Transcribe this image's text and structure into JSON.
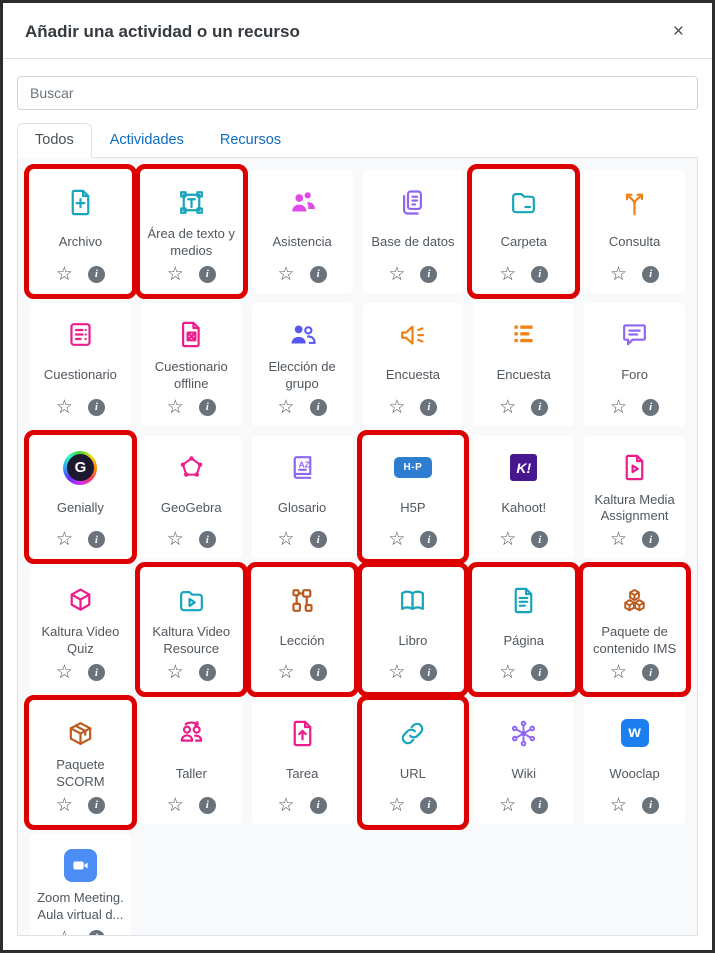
{
  "modal": {
    "title": "Añadir una actividad o un recurso",
    "close_label": "×"
  },
  "search": {
    "placeholder": "Buscar"
  },
  "tabs": [
    {
      "label": "Todos",
      "active": true
    },
    {
      "label": "Actividades",
      "active": false
    },
    {
      "label": "Recursos",
      "active": false
    }
  ],
  "tile_footer": {
    "star_glyph": "☆",
    "info_glyph": "i"
  },
  "colors": {
    "highlight_red": "#dd0000",
    "link_blue": "#0f6cbf",
    "teal": "#17a5bc",
    "pink": "#ec1c8d",
    "orchid": "#df4ae8",
    "purple": "#9066f0",
    "indigo": "#5858f0",
    "orange": "#f08214",
    "rust": "#bb5b20",
    "icon_gray": "#6a737b"
  },
  "modules": [
    {
      "name": "Archivo",
      "icon": "file-plus-icon",
      "color": "#17a5bc",
      "highlighted": true
    },
    {
      "name": "Área de texto y medios",
      "icon": "text-media-icon",
      "color": "#17a5bc",
      "highlighted": true
    },
    {
      "name": "Asistencia",
      "icon": "attendance-people-icon",
      "color": "#df4ae8",
      "highlighted": false
    },
    {
      "name": "Base de datos",
      "icon": "database-docs-icon",
      "color": "#9066f0",
      "highlighted": false
    },
    {
      "name": "Carpeta",
      "icon": "folder-icon",
      "color": "#17a5bc",
      "highlighted": true
    },
    {
      "name": "Consulta",
      "icon": "branch-arrows-icon",
      "color": "#f08214",
      "highlighted": false
    },
    {
      "name": "Cuestionario",
      "icon": "checklist-icon",
      "color": "#ec1c8d",
      "highlighted": false
    },
    {
      "name": "Cuestionario offline",
      "icon": "doc-x-icon",
      "color": "#ec1c8d",
      "highlighted": false
    },
    {
      "name": "Elección de grupo",
      "icon": "two-people-icon",
      "color": "#5858f0",
      "highlighted": false
    },
    {
      "name": "Encuesta",
      "icon": "megaphone-icon",
      "color": "#f08214",
      "highlighted": false
    },
    {
      "name": "Encuesta",
      "icon": "bullet-list-icon",
      "color": "#f08214",
      "highlighted": false
    },
    {
      "name": "Foro",
      "icon": "speech-bubble-icon",
      "color": "#9066f0",
      "highlighted": false
    },
    {
      "name": "Genially",
      "icon": "genially-logo-icon",
      "color": "#1b1830",
      "highlighted": true,
      "badge": {
        "type": "genially",
        "label": "G"
      }
    },
    {
      "name": "GeoGebra",
      "icon": "polygon-dots-icon",
      "color": "#ec1c8d",
      "highlighted": false
    },
    {
      "name": "Glosario",
      "icon": "book-az-icon",
      "color": "#9066f0",
      "highlighted": false
    },
    {
      "name": "H5P",
      "icon": "h5p-logo-icon",
      "color": "#2e7dd1",
      "highlighted": true,
      "badge": {
        "type": "h5p",
        "label": "H-P"
      }
    },
    {
      "name": "Kahoot!",
      "icon": "kahoot-logo-icon",
      "color": "#46178f",
      "highlighted": false,
      "badge": {
        "type": "kahoot",
        "label": "K!"
      }
    },
    {
      "name": "Kaltura Media Assignment",
      "icon": "doc-play-icon",
      "color": "#ec1c8d",
      "highlighted": false
    },
    {
      "name": "Kaltura Video Quiz",
      "icon": "cube-icon",
      "color": "#ec1c8d",
      "highlighted": false
    },
    {
      "name": "Kaltura Video Resource",
      "icon": "folder-play-icon",
      "color": "#17a5bc",
      "highlighted": true
    },
    {
      "name": "Lección",
      "icon": "flowchart-icon",
      "color": "#bb5b20",
      "highlighted": true
    },
    {
      "name": "Libro",
      "icon": "open-book-icon",
      "color": "#17a5bc",
      "highlighted": true
    },
    {
      "name": "Página",
      "icon": "page-lines-icon",
      "color": "#17a5bc",
      "highlighted": true
    },
    {
      "name": "Paquete de contenido IMS",
      "icon": "cubes-icon",
      "color": "#bb5b20",
      "highlighted": true
    },
    {
      "name": "Paquete SCORM",
      "icon": "package-box-icon",
      "color": "#bb5b20",
      "highlighted": true
    },
    {
      "name": "Taller",
      "icon": "people-arrows-icon",
      "color": "#ec1c8d",
      "highlighted": false
    },
    {
      "name": "Tarea",
      "icon": "doc-upload-icon",
      "color": "#ec1c8d",
      "highlighted": false
    },
    {
      "name": "URL",
      "icon": "link-chain-icon",
      "color": "#17a5bc",
      "highlighted": true
    },
    {
      "name": "Wiki",
      "icon": "network-hub-icon",
      "color": "#9066f0",
      "highlighted": false
    },
    {
      "name": "Wooclap",
      "icon": "wooclap-logo-icon",
      "color": "#1d7ef0",
      "highlighted": false,
      "badge": {
        "type": "wooclap",
        "label": "w"
      }
    },
    {
      "name": "Zoom Meeting. Aula virtual d...",
      "icon": "zoom-camera-icon",
      "color": "#4b8cf5",
      "highlighted": false,
      "badge": {
        "type": "zoom",
        "label": ""
      }
    }
  ]
}
